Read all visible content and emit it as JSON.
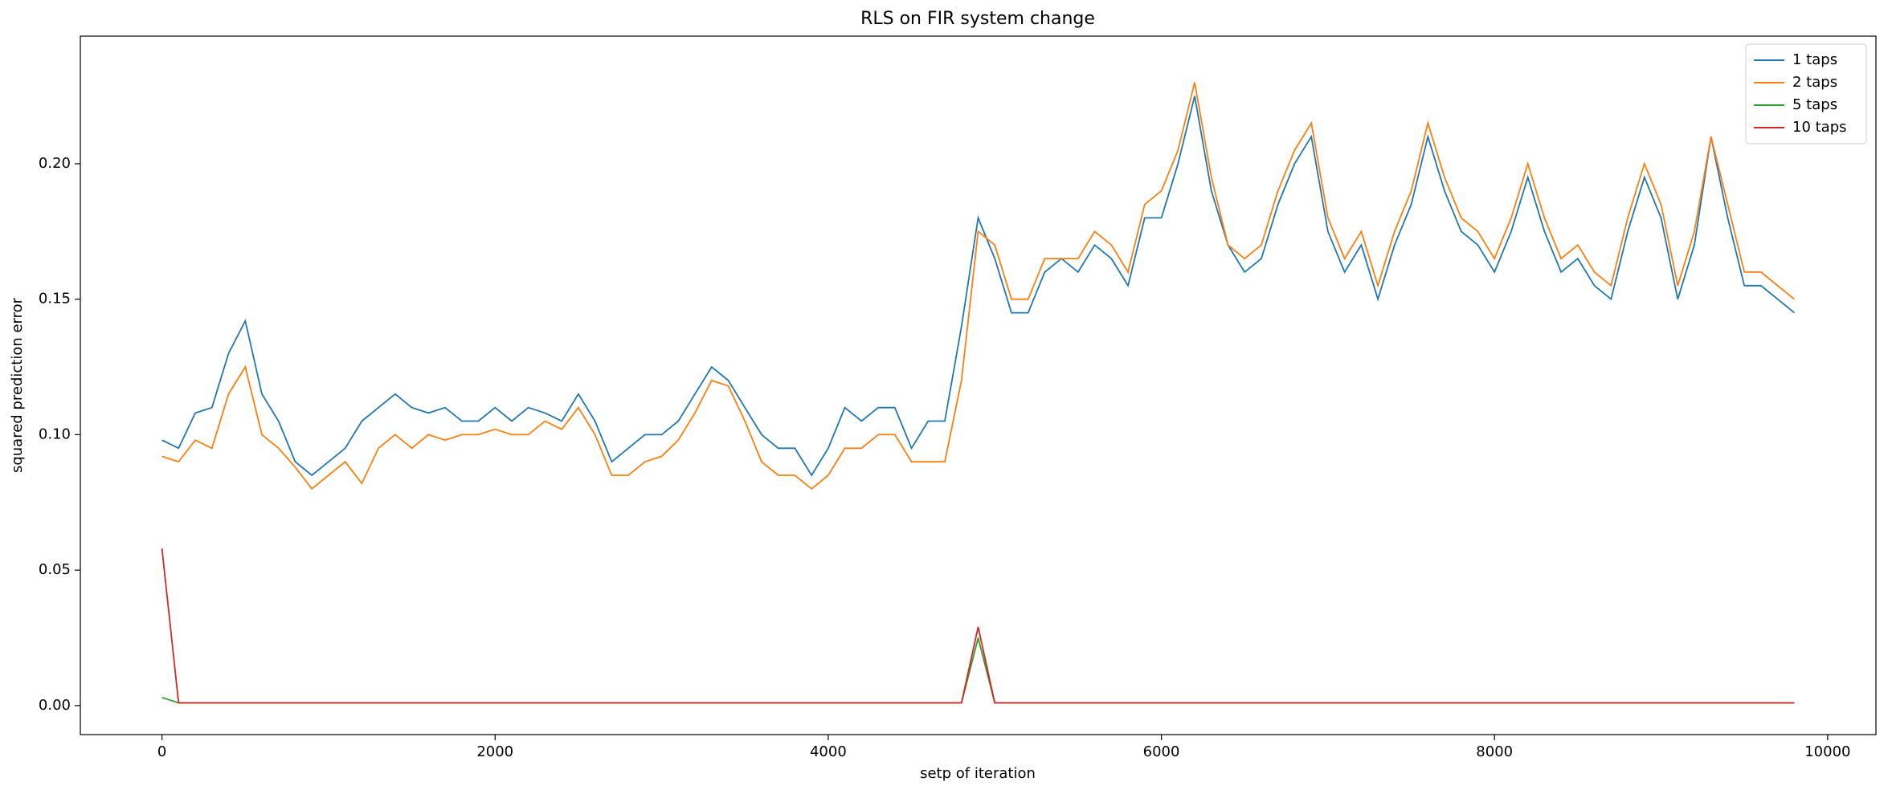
{
  "chart_data": {
    "type": "line",
    "title": "RLS on FIR system change",
    "x_label": "setp of iteration",
    "y_label": "squared prediction error",
    "x": [
      0,
      100,
      200,
      300,
      400,
      500,
      600,
      700,
      800,
      900,
      1000,
      1100,
      1200,
      1300,
      1400,
      1500,
      1600,
      1700,
      1800,
      1900,
      2000,
      2100,
      2200,
      2300,
      2400,
      2500,
      2600,
      2700,
      2800,
      2900,
      3000,
      3100,
      3200,
      3300,
      3400,
      3500,
      3600,
      3700,
      3800,
      3900,
      4000,
      4100,
      4200,
      4300,
      4400,
      4500,
      4600,
      4700,
      4800,
      4900,
      5000,
      5100,
      5200,
      5300,
      5400,
      5500,
      5600,
      5700,
      5800,
      5900,
      6000,
      6100,
      6200,
      6300,
      6400,
      6500,
      6600,
      6700,
      6800,
      6900,
      7000,
      7100,
      7200,
      7300,
      7400,
      7500,
      7600,
      7700,
      7800,
      7900,
      8000,
      8100,
      8200,
      8300,
      8400,
      8500,
      8600,
      8700,
      8800,
      8900,
      9000,
      9100,
      9200,
      9300,
      9400,
      9500,
      9600,
      9700,
      9800
    ],
    "series": [
      {
        "name": "1 taps",
        "color": "#1f77b4",
        "values": [
          0.098,
          0.095,
          0.108,
          0.11,
          0.13,
          0.142,
          0.115,
          0.105,
          0.09,
          0.085,
          0.09,
          0.095,
          0.105,
          0.11,
          0.115,
          0.11,
          0.108,
          0.11,
          0.105,
          0.105,
          0.11,
          0.105,
          0.11,
          0.108,
          0.105,
          0.115,
          0.105,
          0.09,
          0.095,
          0.1,
          0.1,
          0.105,
          0.115,
          0.125,
          0.12,
          0.11,
          0.1,
          0.095,
          0.095,
          0.085,
          0.095,
          0.11,
          0.105,
          0.11,
          0.11,
          0.095,
          0.105,
          0.105,
          0.14,
          0.18,
          0.165,
          0.145,
          0.145,
          0.16,
          0.165,
          0.16,
          0.17,
          0.165,
          0.155,
          0.18,
          0.18,
          0.2,
          0.225,
          0.19,
          0.17,
          0.16,
          0.165,
          0.185,
          0.2,
          0.21,
          0.175,
          0.16,
          0.17,
          0.15,
          0.17,
          0.185,
          0.21,
          0.19,
          0.175,
          0.17,
          0.16,
          0.175,
          0.195,
          0.175,
          0.16,
          0.165,
          0.155,
          0.15,
          0.175,
          0.195,
          0.18,
          0.15,
          0.17,
          0.21,
          0.18,
          0.155,
          0.155,
          0.15,
          0.145
        ]
      },
      {
        "name": "2 taps",
        "color": "#ff7f0e",
        "values": [
          0.092,
          0.09,
          0.098,
          0.095,
          0.115,
          0.125,
          0.1,
          0.095,
          0.088,
          0.08,
          0.085,
          0.09,
          0.082,
          0.095,
          0.1,
          0.095,
          0.1,
          0.098,
          0.1,
          0.1,
          0.102,
          0.1,
          0.1,
          0.105,
          0.102,
          0.11,
          0.1,
          0.085,
          0.085,
          0.09,
          0.092,
          0.098,
          0.108,
          0.12,
          0.118,
          0.105,
          0.09,
          0.085,
          0.085,
          0.08,
          0.085,
          0.095,
          0.095,
          0.1,
          0.1,
          0.09,
          0.09,
          0.09,
          0.12,
          0.175,
          0.17,
          0.15,
          0.15,
          0.165,
          0.165,
          0.165,
          0.175,
          0.17,
          0.16,
          0.185,
          0.19,
          0.205,
          0.23,
          0.195,
          0.17,
          0.165,
          0.17,
          0.19,
          0.205,
          0.215,
          0.18,
          0.165,
          0.175,
          0.155,
          0.175,
          0.19,
          0.215,
          0.195,
          0.18,
          0.175,
          0.165,
          0.18,
          0.2,
          0.18,
          0.165,
          0.17,
          0.16,
          0.155,
          0.18,
          0.2,
          0.185,
          0.155,
          0.175,
          0.21,
          0.185,
          0.16,
          0.16,
          0.155,
          0.15
        ]
      },
      {
        "name": "5 taps",
        "color": "#2ca02c",
        "values": [
          0.003,
          0.001,
          0.001,
          0.001,
          0.001,
          0.001,
          0.001,
          0.001,
          0.001,
          0.001,
          0.001,
          0.001,
          0.001,
          0.001,
          0.001,
          0.001,
          0.001,
          0.001,
          0.001,
          0.001,
          0.001,
          0.001,
          0.001,
          0.001,
          0.001,
          0.001,
          0.001,
          0.001,
          0.001,
          0.001,
          0.001,
          0.001,
          0.001,
          0.001,
          0.001,
          0.001,
          0.001,
          0.001,
          0.001,
          0.001,
          0.001,
          0.001,
          0.001,
          0.001,
          0.001,
          0.001,
          0.001,
          0.001,
          0.001,
          0.025,
          0.001,
          0.001,
          0.001,
          0.001,
          0.001,
          0.001,
          0.001,
          0.001,
          0.001,
          0.001,
          0.001,
          0.001,
          0.001,
          0.001,
          0.001,
          0.001,
          0.001,
          0.001,
          0.001,
          0.001,
          0.001,
          0.001,
          0.001,
          0.001,
          0.001,
          0.001,
          0.001,
          0.001,
          0.001,
          0.001,
          0.001,
          0.001,
          0.001,
          0.001,
          0.001,
          0.001,
          0.001,
          0.001,
          0.001,
          0.001,
          0.001,
          0.001,
          0.001,
          0.001,
          0.001,
          0.001,
          0.001,
          0.001,
          0.001
        ]
      },
      {
        "name": "10 taps",
        "color": "#d62728",
        "values": [
          0.058,
          0.001,
          0.001,
          0.001,
          0.001,
          0.001,
          0.001,
          0.001,
          0.001,
          0.001,
          0.001,
          0.001,
          0.001,
          0.001,
          0.001,
          0.001,
          0.001,
          0.001,
          0.001,
          0.001,
          0.001,
          0.001,
          0.001,
          0.001,
          0.001,
          0.001,
          0.001,
          0.001,
          0.001,
          0.001,
          0.001,
          0.001,
          0.001,
          0.001,
          0.001,
          0.001,
          0.001,
          0.001,
          0.001,
          0.001,
          0.001,
          0.001,
          0.001,
          0.001,
          0.001,
          0.001,
          0.001,
          0.001,
          0.001,
          0.029,
          0.001,
          0.001,
          0.001,
          0.001,
          0.001,
          0.001,
          0.001,
          0.001,
          0.001,
          0.001,
          0.001,
          0.001,
          0.001,
          0.001,
          0.001,
          0.001,
          0.001,
          0.001,
          0.001,
          0.001,
          0.001,
          0.001,
          0.001,
          0.001,
          0.001,
          0.001,
          0.001,
          0.001,
          0.001,
          0.001,
          0.001,
          0.001,
          0.001,
          0.001,
          0.001,
          0.001,
          0.001,
          0.001,
          0.001,
          0.001,
          0.001,
          0.001,
          0.001,
          0.001,
          0.001,
          0.001,
          0.001,
          0.001,
          0.001
        ]
      }
    ],
    "xlim": [
      -490,
      10290
    ],
    "ylim": [
      -0.0107,
      0.2471
    ],
    "xticks": [
      0,
      2000,
      4000,
      6000,
      8000,
      10000
    ],
    "yticks": [
      {
        "value": 0,
        "label": "0.00"
      },
      {
        "value": 0.05,
        "label": "0.05"
      },
      {
        "value": 0.1,
        "label": "0.10"
      },
      {
        "value": 0.15,
        "label": "0.15"
      },
      {
        "value": 0.2,
        "label": "0.20"
      }
    ],
    "legend": "upper right"
  }
}
